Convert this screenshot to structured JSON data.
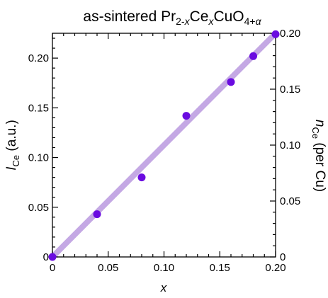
{
  "chart_data": {
    "type": "scatter",
    "title": {
      "prefix": "as-sintered Pr",
      "sub1": "2-",
      "sub1_italic": "x",
      "mid1": "Ce",
      "sub2_italic": "x",
      "mid2": "CuO",
      "sub3": "4+",
      "sub3_italic": "α"
    },
    "xlabel": "x",
    "ylabel": {
      "main": "I",
      "sub": "Ce",
      "rest": " (a.u.)"
    },
    "y2label": {
      "main": "n",
      "sub": "Ce",
      "rest": " (per Cu)"
    },
    "xlim": [
      0,
      0.2
    ],
    "ylim": [
      0,
      0.225
    ],
    "y2lim": [
      0,
      0.2
    ],
    "xticks": [
      "0",
      "0.05",
      "0.10",
      "0.15",
      "0.20"
    ],
    "yticks": [
      "0",
      "0.05",
      "0.10",
      "0.15",
      "0.20"
    ],
    "y2ticks": [
      "0",
      "0.05",
      "0.10",
      "0.15",
      "0.20"
    ],
    "xtick_values": [
      0,
      0.05,
      0.1,
      0.15,
      0.2
    ],
    "ytick_values": [
      0,
      0.05,
      0.1,
      0.15,
      0.2
    ],
    "y2tick_values": [
      0,
      0.05,
      0.1,
      0.15,
      0.2
    ],
    "points": [
      {
        "x": 0.0,
        "y": 0.0
      },
      {
        "x": 0.04,
        "y": 0.043
      },
      {
        "x": 0.08,
        "y": 0.08
      },
      {
        "x": 0.12,
        "y": 0.142
      },
      {
        "x": 0.16,
        "y": 0.176
      },
      {
        "x": 0.18,
        "y": 0.202
      },
      {
        "x": 0.2,
        "y": 0.224
      }
    ],
    "fit_line": {
      "x": [
        0,
        0.2
      ],
      "y2": [
        0,
        0.2
      ]
    },
    "colors": {
      "points": "#6a0be0",
      "line": "#c4a8e4"
    },
    "grid": false,
    "legend": "none"
  }
}
